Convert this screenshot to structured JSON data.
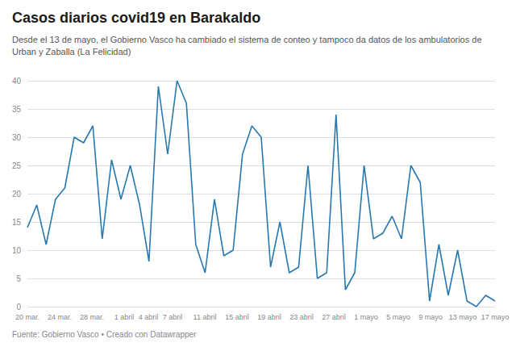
{
  "chart_data": {
    "type": "line",
    "title": "Casos diarios covid19 en Barakaldo",
    "subtitle": "Desde el 13 de mayo, el Gobierno Vasco ha cambiado el sistema de conteo y tampoco da datos de los ambulatorios de Urban y Zaballa (La Felicidad)",
    "footer": "Fuente: Gobierno Vasco • Creado con Datawrapper",
    "color": "#2778ae",
    "x": [
      0,
      1,
      2,
      3,
      4,
      5,
      6,
      7,
      8,
      9,
      10,
      11,
      12,
      13,
      14,
      15,
      16,
      17,
      18,
      19,
      20,
      21,
      22,
      23,
      24,
      25,
      26,
      27,
      28,
      29,
      30,
      31,
      32,
      33,
      34,
      35,
      36,
      37,
      38,
      39,
      40,
      41,
      42,
      43,
      44,
      45,
      46,
      47,
      48,
      49,
      50
    ],
    "values": [
      14,
      18,
      11,
      19,
      21,
      30,
      29,
      32,
      12,
      26,
      19,
      25,
      18,
      8,
      39,
      27,
      40,
      36,
      11,
      6,
      19,
      9,
      10,
      27,
      32,
      30,
      7,
      15,
      6,
      7,
      25,
      5,
      6,
      34,
      3,
      6,
      25,
      12,
      13,
      16,
      12,
      25,
      22,
      1,
      11,
      2,
      10,
      1,
      0,
      2,
      1
    ],
    "xlim": [
      0,
      50
    ],
    "xticks": [
      {
        "value": 0,
        "label": "20 mar."
      },
      {
        "value": 3.448276,
        "label": "24 mar."
      },
      {
        "value": 6.896552,
        "label": "28 mar."
      },
      {
        "value": 10.344828,
        "label": "1 abril"
      },
      {
        "value": 12.931034,
        "label": "4 abril"
      },
      {
        "value": 15.517241,
        "label": "7 abril"
      },
      {
        "value": 18.965517,
        "label": "11 abril"
      },
      {
        "value": 22.413793,
        "label": "15 abril"
      },
      {
        "value": 25.862069,
        "label": "19 abril"
      },
      {
        "value": 29.310345,
        "label": "23 abril"
      },
      {
        "value": 32.758621,
        "label": "27 abril"
      },
      {
        "value": 36.206897,
        "label": "1 mayo"
      },
      {
        "value": 39.655172,
        "label": "5 mayo"
      },
      {
        "value": 43.103448,
        "label": "9 mayo"
      },
      {
        "value": 46.551724,
        "label": "13 mayo"
      },
      {
        "value": 50,
        "label": "17 mayo"
      }
    ],
    "ylim": [
      0,
      40
    ],
    "yticks": [
      0,
      5,
      10,
      15,
      20,
      25,
      30,
      35,
      40
    ],
    "grid": true
  }
}
